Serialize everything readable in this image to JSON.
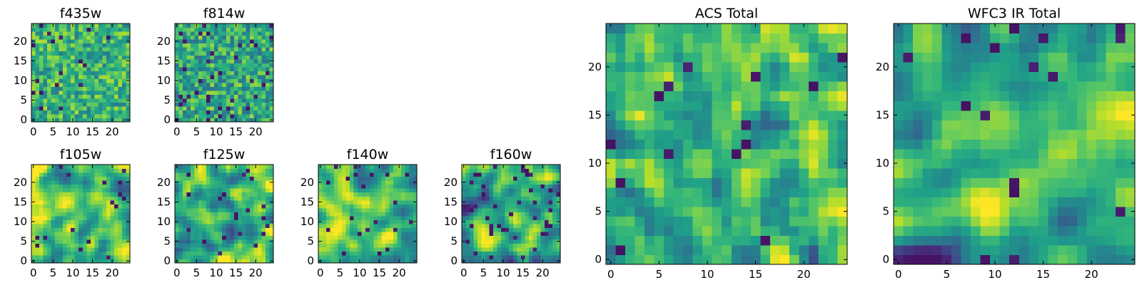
{
  "chart_data": [
    {
      "type": "heatmap",
      "title": "f435w",
      "xlim": [
        0,
        24
      ],
      "ylim": [
        0,
        24
      ],
      "xticks": [
        "0",
        "5",
        "10",
        "15",
        "20"
      ],
      "yticks": [
        "0",
        "5",
        "10",
        "15",
        "20"
      ],
      "colormap": "viridis",
      "seed": 11,
      "smooth": 0,
      "mean": 0.65,
      "spread": 0.24,
      "dark_frac": 0.04
    },
    {
      "type": "heatmap",
      "title": "f814w",
      "xlim": [
        0,
        24
      ],
      "ylim": [
        0,
        24
      ],
      "xticks": [
        "0",
        "5",
        "10",
        "15",
        "20"
      ],
      "yticks": [
        "0",
        "5",
        "10",
        "15",
        "20"
      ],
      "colormap": "viridis",
      "seed": 23,
      "smooth": 0,
      "mean": 0.6,
      "spread": 0.26,
      "dark_frac": 0.05
    },
    {
      "type": "heatmap",
      "title": "f105w",
      "xlim": [
        0,
        24
      ],
      "ylim": [
        0,
        24
      ],
      "xticks": [
        "0",
        "5",
        "10",
        "15",
        "20"
      ],
      "yticks": [
        "0",
        "5",
        "10",
        "15",
        "20"
      ],
      "colormap": "viridis",
      "seed": 37,
      "smooth": 2,
      "mean": 0.7,
      "spread": 0.3,
      "dark_frac": 0.03
    },
    {
      "type": "heatmap",
      "title": "f125w",
      "xlim": [
        0,
        24
      ],
      "ylim": [
        0,
        24
      ],
      "xticks": [
        "0",
        "5",
        "10",
        "15",
        "20"
      ],
      "yticks": [
        "0",
        "5",
        "10",
        "15",
        "20"
      ],
      "colormap": "viridis",
      "seed": 41,
      "smooth": 2,
      "mean": 0.64,
      "spread": 0.3,
      "dark_frac": 0.03
    },
    {
      "type": "heatmap",
      "title": "f140w",
      "xlim": [
        0,
        24
      ],
      "ylim": [
        0,
        24
      ],
      "xticks": [
        "0",
        "5",
        "10",
        "15",
        "20"
      ],
      "yticks": [
        "0",
        "5",
        "10",
        "15",
        "20"
      ],
      "colormap": "viridis",
      "seed": 53,
      "smooth": 2,
      "mean": 0.68,
      "spread": 0.3,
      "dark_frac": 0.04
    },
    {
      "type": "heatmap",
      "title": "f160w",
      "xlim": [
        0,
        24
      ],
      "ylim": [
        0,
        24
      ],
      "xticks": [
        "0",
        "5",
        "10",
        "15",
        "20"
      ],
      "yticks": [
        "0",
        "5",
        "10",
        "15",
        "20"
      ],
      "colormap": "viridis",
      "seed": 67,
      "smooth": 2,
      "mean": 0.6,
      "spread": 0.32,
      "dark_frac": 0.05
    },
    {
      "type": "heatmap",
      "title": "ACS Total",
      "xlim": [
        0,
        24
      ],
      "ylim": [
        0,
        24
      ],
      "xticks": [
        "0",
        "5",
        "10",
        "15",
        "20"
      ],
      "yticks": [
        "0",
        "5",
        "10",
        "15",
        "20"
      ],
      "colormap": "viridis",
      "seed": 79,
      "smooth": 1,
      "mean": 0.66,
      "spread": 0.24,
      "dark_frac": 0.03
    },
    {
      "type": "heatmap",
      "title": "WFC3 IR Total",
      "xlim": [
        0,
        24
      ],
      "ylim": [
        0,
        24
      ],
      "xticks": [
        "0",
        "5",
        "10",
        "15",
        "20"
      ],
      "yticks": [
        "0",
        "5",
        "10",
        "15",
        "20"
      ],
      "colormap": "viridis",
      "seed": 97,
      "smooth": 2,
      "mean": 0.63,
      "spread": 0.28,
      "dark_frac": 0.03
    }
  ]
}
